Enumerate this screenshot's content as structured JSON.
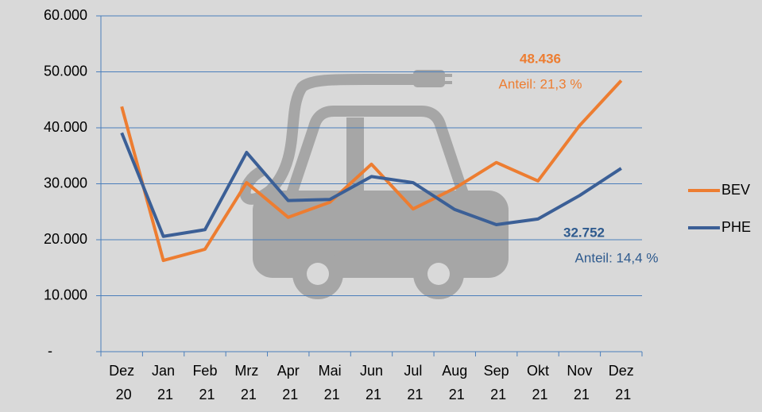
{
  "chart_data": {
    "type": "line",
    "categories": [
      "Dez 20",
      "Jan 21",
      "Feb 21",
      "Mrz 21",
      "Apr 21",
      "Mai 21",
      "Jun 21",
      "Jul 21",
      "Aug 21",
      "Sep 21",
      "Okt 21",
      "Nov 21",
      "Dez 21"
    ],
    "series": [
      {
        "name": "BEV",
        "color": "#ed7d31",
        "values": [
          43800,
          16300,
          18300,
          30200,
          24000,
          26700,
          33500,
          25500,
          29200,
          33800,
          30500,
          40400,
          48436
        ]
      },
      {
        "name": "PHE",
        "color": "#3b5f96",
        "values": [
          39100,
          20600,
          21800,
          35600,
          27000,
          27200,
          31300,
          30200,
          25400,
          22700,
          23700,
          27900,
          32752
        ]
      }
    ],
    "ylim": [
      0,
      60000
    ],
    "yticks": [
      {
        "value": 0,
        "label": "-"
      },
      {
        "value": 10000,
        "label": "10.000"
      },
      {
        "value": 20000,
        "label": "20.000"
      },
      {
        "value": 30000,
        "label": "30.000"
      },
      {
        "value": 40000,
        "label": "40.000"
      },
      {
        "value": 50000,
        "label": "50.000"
      },
      {
        "value": 60000,
        "label": "60.000"
      }
    ],
    "grid": true,
    "legend": "right",
    "annotations": [
      {
        "text": "48.436",
        "color": "#ed7d31",
        "bold": true
      },
      {
        "text": "Anteil: 21,3 %",
        "color": "#ed7d31",
        "bold": false
      },
      {
        "text": "32.752",
        "color": "#2e5a8e",
        "bold": true
      },
      {
        "text": "Anteil: 14,4 %",
        "color": "#2e5a8e",
        "bold": false
      }
    ]
  }
}
